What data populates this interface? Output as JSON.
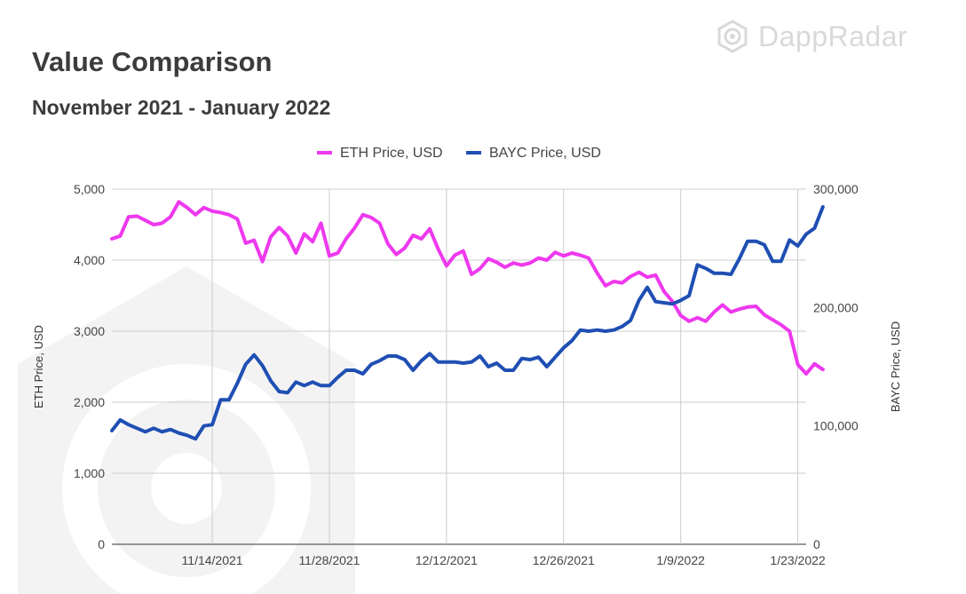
{
  "header": {
    "title": "Value Comparison",
    "subtitle": "November 2021 - January 2022",
    "brand": "DappRadar"
  },
  "colors": {
    "eth": "#ee38ee",
    "bayc": "#1f4fb3",
    "grid": "#cccccc",
    "watermark": "#f0f0f0"
  },
  "chart_data": {
    "type": "line",
    "title": "Value Comparison",
    "subtitle": "November 2021 - January 2022",
    "legend_position": "top-center",
    "grid": true,
    "x_tick_labels": [
      "11/14/2021",
      "11/28/2021",
      "12/12/2021",
      "12/26/2021",
      "1/9/2022",
      "1/23/2022"
    ],
    "x_tick_dates": [
      "2021-11-14",
      "2021-11-28",
      "2021-12-12",
      "2021-12-26",
      "2022-01-09",
      "2022-01-23"
    ],
    "x_range": [
      "2021-11-02",
      "2022-01-24"
    ],
    "y_left": {
      "label": "ETH Price, USD",
      "range": [
        0,
        5000
      ],
      "ticks": [
        "0",
        "1,000",
        "2,000",
        "3,000",
        "4,000",
        "5,000"
      ]
    },
    "y_right": {
      "label": "BAYC Price, USD",
      "range": [
        0,
        300000
      ],
      "ticks": [
        "0",
        "100,000",
        "200,000",
        "300,000"
      ]
    },
    "series": [
      {
        "name": "ETH Price, USD",
        "axis": "left",
        "points": [
          [
            "2021-11-02",
            4300
          ],
          [
            "2021-11-03",
            4340
          ],
          [
            "2021-11-04",
            4610
          ],
          [
            "2021-11-05",
            4620
          ],
          [
            "2021-11-06",
            4560
          ],
          [
            "2021-11-07",
            4500
          ],
          [
            "2021-11-08",
            4520
          ],
          [
            "2021-11-09",
            4610
          ],
          [
            "2021-11-10",
            4820
          ],
          [
            "2021-11-11",
            4740
          ],
          [
            "2021-11-12",
            4640
          ],
          [
            "2021-11-13",
            4740
          ],
          [
            "2021-11-14",
            4690
          ],
          [
            "2021-11-15",
            4670
          ],
          [
            "2021-11-16",
            4640
          ],
          [
            "2021-11-17",
            4580
          ],
          [
            "2021-11-18",
            4240
          ],
          [
            "2021-11-19",
            4280
          ],
          [
            "2021-11-20",
            3980
          ],
          [
            "2021-11-21",
            4330
          ],
          [
            "2021-11-22",
            4460
          ],
          [
            "2021-11-23",
            4340
          ],
          [
            "2021-11-24",
            4100
          ],
          [
            "2021-11-25",
            4370
          ],
          [
            "2021-11-26",
            4260
          ],
          [
            "2021-11-27",
            4520
          ],
          [
            "2021-11-28",
            4060
          ],
          [
            "2021-11-29",
            4100
          ],
          [
            "2021-11-30",
            4300
          ],
          [
            "2021-12-01",
            4450
          ],
          [
            "2021-12-02",
            4640
          ],
          [
            "2021-12-03",
            4600
          ],
          [
            "2021-12-04",
            4520
          ],
          [
            "2021-12-05",
            4230
          ],
          [
            "2021-12-06",
            4080
          ],
          [
            "2021-12-07",
            4170
          ],
          [
            "2021-12-08",
            4350
          ],
          [
            "2021-12-09",
            4300
          ],
          [
            "2021-12-10",
            4440
          ],
          [
            "2021-12-11",
            4160
          ],
          [
            "2021-12-12",
            3920
          ],
          [
            "2021-12-13",
            4070
          ],
          [
            "2021-12-14",
            4130
          ],
          [
            "2021-12-15",
            3800
          ],
          [
            "2021-12-16",
            3880
          ],
          [
            "2021-12-17",
            4020
          ],
          [
            "2021-12-18",
            3970
          ],
          [
            "2021-12-19",
            3900
          ],
          [
            "2021-12-20",
            3960
          ],
          [
            "2021-12-21",
            3930
          ],
          [
            "2021-12-22",
            3960
          ],
          [
            "2021-12-23",
            4030
          ],
          [
            "2021-12-24",
            4000
          ],
          [
            "2021-12-25",
            4110
          ],
          [
            "2021-12-26",
            4060
          ],
          [
            "2021-12-27",
            4100
          ],
          [
            "2021-12-28",
            4070
          ],
          [
            "2021-12-29",
            4030
          ],
          [
            "2021-12-30",
            3820
          ],
          [
            "2021-12-31",
            3640
          ],
          [
            "2022-01-01",
            3700
          ],
          [
            "2022-01-02",
            3680
          ],
          [
            "2022-01-03",
            3770
          ],
          [
            "2022-01-04",
            3830
          ],
          [
            "2022-01-05",
            3760
          ],
          [
            "2022-01-06",
            3790
          ],
          [
            "2022-01-07",
            3560
          ],
          [
            "2022-01-08",
            3420
          ],
          [
            "2022-01-09",
            3220
          ],
          [
            "2022-01-10",
            3140
          ],
          [
            "2022-01-11",
            3190
          ],
          [
            "2022-01-12",
            3140
          ],
          [
            "2022-01-13",
            3270
          ],
          [
            "2022-01-14",
            3370
          ],
          [
            "2022-01-15",
            3270
          ],
          [
            "2022-01-16",
            3310
          ],
          [
            "2022-01-17",
            3340
          ],
          [
            "2022-01-18",
            3350
          ],
          [
            "2022-01-19",
            3230
          ],
          [
            "2022-01-20",
            3160
          ],
          [
            "2022-01-21",
            3090
          ],
          [
            "2022-01-22",
            3000
          ],
          [
            "2022-01-23",
            2530
          ],
          [
            "2022-01-24",
            2400
          ],
          [
            "2022-01-25",
            2540
          ],
          [
            "2022-01-26",
            2460
          ]
        ]
      },
      {
        "name": "BAYC Price, USD",
        "axis": "right",
        "points": [
          [
            "2021-11-02",
            96000
          ],
          [
            "2021-11-03",
            105000
          ],
          [
            "2021-11-04",
            101000
          ],
          [
            "2021-11-05",
            98000
          ],
          [
            "2021-11-06",
            95000
          ],
          [
            "2021-11-07",
            98000
          ],
          [
            "2021-11-08",
            95000
          ],
          [
            "2021-11-09",
            97000
          ],
          [
            "2021-11-10",
            94000
          ],
          [
            "2021-11-11",
            92000
          ],
          [
            "2021-11-12",
            89000
          ],
          [
            "2021-11-13",
            100000
          ],
          [
            "2021-11-14",
            101000
          ],
          [
            "2021-11-15",
            122000
          ],
          [
            "2021-11-16",
            122000
          ],
          [
            "2021-11-17",
            136000
          ],
          [
            "2021-11-18",
            152000
          ],
          [
            "2021-11-19",
            160000
          ],
          [
            "2021-11-20",
            151000
          ],
          [
            "2021-11-21",
            138000
          ],
          [
            "2021-11-22",
            129000
          ],
          [
            "2021-11-23",
            128000
          ],
          [
            "2021-11-24",
            137000
          ],
          [
            "2021-11-25",
            134000
          ],
          [
            "2021-11-26",
            137000
          ],
          [
            "2021-11-27",
            134000
          ],
          [
            "2021-11-28",
            134000
          ],
          [
            "2021-11-29",
            141000
          ],
          [
            "2021-11-30",
            147000
          ],
          [
            "2021-12-01",
            147000
          ],
          [
            "2021-12-02",
            144000
          ],
          [
            "2021-12-03",
            152000
          ],
          [
            "2021-12-04",
            155000
          ],
          [
            "2021-12-05",
            159000
          ],
          [
            "2021-12-06",
            159000
          ],
          [
            "2021-12-07",
            156000
          ],
          [
            "2021-12-08",
            147000
          ],
          [
            "2021-12-09",
            155000
          ],
          [
            "2021-12-10",
            161000
          ],
          [
            "2021-12-11",
            154000
          ],
          [
            "2021-12-12",
            154000
          ],
          [
            "2021-12-13",
            154000
          ],
          [
            "2021-12-14",
            153000
          ],
          [
            "2021-12-15",
            154000
          ],
          [
            "2021-12-16",
            159000
          ],
          [
            "2021-12-17",
            150000
          ],
          [
            "2021-12-18",
            153000
          ],
          [
            "2021-12-19",
            147000
          ],
          [
            "2021-12-20",
            147000
          ],
          [
            "2021-12-21",
            157000
          ],
          [
            "2021-12-22",
            156000
          ],
          [
            "2021-12-23",
            158000
          ],
          [
            "2021-12-24",
            150000
          ],
          [
            "2021-12-25",
            158000
          ],
          [
            "2021-12-26",
            166000
          ],
          [
            "2021-12-27",
            172000
          ],
          [
            "2021-12-28",
            181000
          ],
          [
            "2021-12-29",
            180000
          ],
          [
            "2021-12-30",
            181000
          ],
          [
            "2021-12-31",
            180000
          ],
          [
            "2022-01-01",
            181000
          ],
          [
            "2022-01-02",
            184000
          ],
          [
            "2022-01-03",
            189000
          ],
          [
            "2022-01-04",
            206000
          ],
          [
            "2022-01-05",
            217000
          ],
          [
            "2022-01-06",
            205000
          ],
          [
            "2022-01-07",
            204000
          ],
          [
            "2022-01-08",
            203000
          ],
          [
            "2022-01-09",
            206000
          ],
          [
            "2022-01-10",
            210000
          ],
          [
            "2022-01-11",
            236000
          ],
          [
            "2022-01-12",
            233000
          ],
          [
            "2022-01-13",
            229000
          ],
          [
            "2022-01-14",
            229000
          ],
          [
            "2022-01-15",
            228000
          ],
          [
            "2022-01-16",
            241000
          ],
          [
            "2022-01-17",
            256000
          ],
          [
            "2022-01-18",
            256000
          ],
          [
            "2022-01-19",
            253000
          ],
          [
            "2022-01-20",
            239000
          ],
          [
            "2022-01-21",
            239000
          ],
          [
            "2022-01-22",
            257000
          ],
          [
            "2022-01-23",
            252000
          ],
          [
            "2022-01-24",
            262000
          ],
          [
            "2022-01-25",
            267000
          ],
          [
            "2022-01-26",
            285000
          ]
        ]
      }
    ]
  }
}
